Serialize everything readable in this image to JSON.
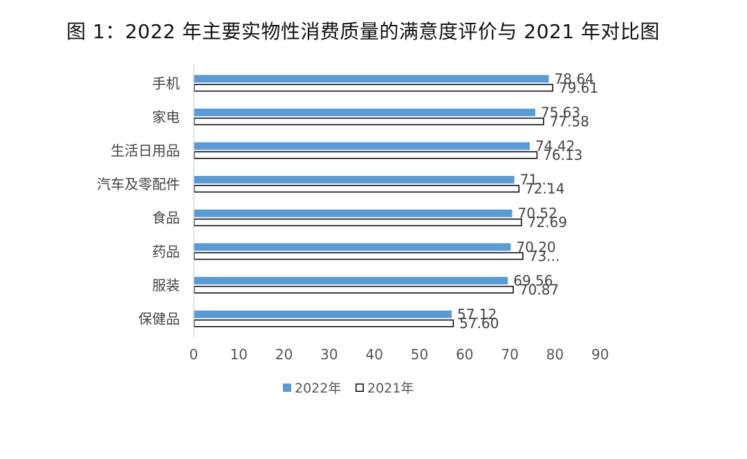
{
  "title": "图 1：2022 年主要实物性消费质量的满意度评价与 2021 年对比图",
  "chart_data": {
    "type": "bar",
    "orientation": "horizontal",
    "categories": [
      "手机",
      "家电",
      "生活日用品",
      "汽车及零配件",
      "食品",
      "药品",
      "服装",
      "保健品"
    ],
    "series": [
      {
        "name": "2022年",
        "values": [
          78.64,
          75.63,
          74.42,
          71.0,
          70.52,
          70.2,
          69.56,
          57.12
        ],
        "labels": [
          "78.64",
          "75.63",
          "74.42",
          "71...",
          "70.52",
          "70.20",
          "69.56",
          "57.12"
        ],
        "color": "#5b9bd5",
        "fill": "solid"
      },
      {
        "name": "2021年",
        "values": [
          79.61,
          77.58,
          76.13,
          72.14,
          72.69,
          73.0,
          70.87,
          57.6
        ],
        "labels": [
          "79.61",
          "77.58",
          "76.13",
          "72.14",
          "72.69",
          "73...",
          "70.87",
          "57.60"
        ],
        "color": "#000000",
        "fill": "none"
      }
    ],
    "xlim": [
      0,
      90
    ],
    "xticks": [
      "0",
      "10",
      "20",
      "30",
      "40",
      "50",
      "60",
      "70",
      "80",
      "90"
    ],
    "grid": false,
    "legend": "bottom"
  }
}
